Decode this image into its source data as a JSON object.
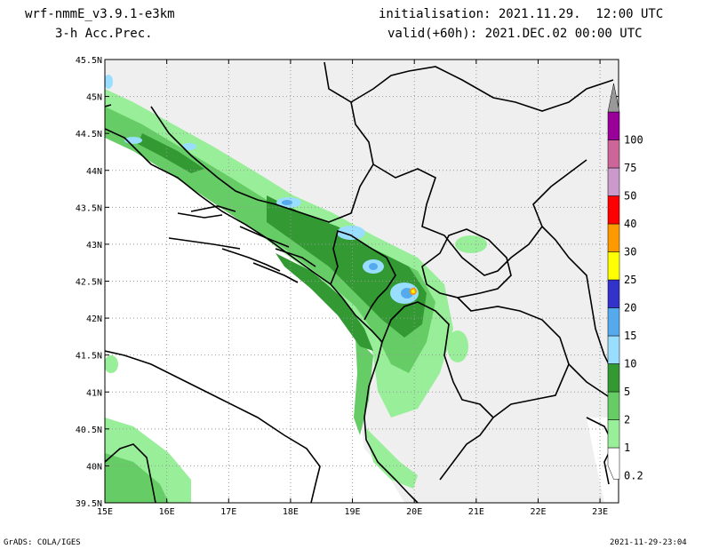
{
  "header": {
    "model": "wrf-nmmE_v3.9.1-e3km",
    "field": "3-h Acc.Prec.",
    "init": "initialisation: 2021.11.29.  12:00 UTC",
    "valid": "valid(+60h): 2021.DEC.02 00:00 UTC"
  },
  "footer": {
    "left": "GrADS: COLA/IGES",
    "right": "2021-11-29-23:04"
  },
  "map": {
    "lon_labels": [
      "15E",
      "16E",
      "17E",
      "18E",
      "19E",
      "20E",
      "21E",
      "22E",
      "23E"
    ],
    "lat_labels": [
      "45.5N",
      "45N",
      "44.5N",
      "44N",
      "43.5N",
      "43N",
      "42.5N",
      "42N",
      "41.5N",
      "41N",
      "40.5N",
      "40N",
      "39.5N"
    ]
  },
  "colorbar": {
    "labels": [
      "0.2",
      "1",
      "2",
      "5",
      "10",
      "15",
      "20",
      "25",
      "30",
      "40",
      "50",
      "75",
      "100"
    ],
    "colors": [
      "#ffffff",
      "#99ee99",
      "#66cc66",
      "#339933",
      "#99ddff",
      "#55aaee",
      "#3333cc",
      "#ffff00",
      "#ff9900",
      "#ff0000",
      "#cc99cc",
      "#cc6699",
      "#990099",
      "#999999"
    ]
  }
}
